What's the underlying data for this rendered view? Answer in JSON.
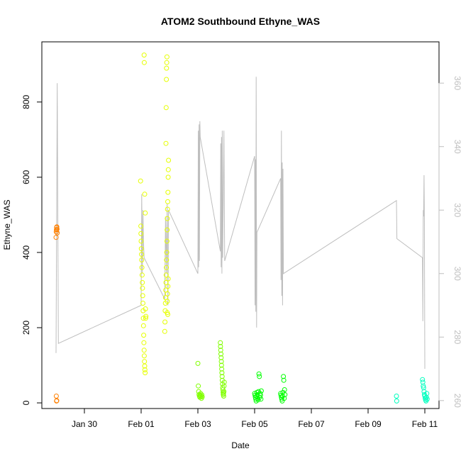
{
  "chart_data": {
    "type": "scatter",
    "title": "ATOM2 Southbound Ethyne_WAS",
    "xlabel": "Date",
    "ylabel": "Ethyne_WAS",
    "ylabel_right": "",
    "x_range": [
      "2017-01-28 12:00",
      "2017-02-11 12:00"
    ],
    "ylim": [
      -15,
      960
    ],
    "ylim_right": [
      257.5,
      373
    ],
    "x_ticks": [
      {
        "date": "2017-01-30",
        "label": "Jan 30"
      },
      {
        "date": "2017-02-01",
        "label": "Feb 01"
      },
      {
        "date": "2017-02-03",
        "label": "Feb 03"
      },
      {
        "date": "2017-02-05",
        "label": "Feb 05"
      },
      {
        "date": "2017-02-07",
        "label": "Feb 07"
      },
      {
        "date": "2017-02-09",
        "label": "Feb 09"
      },
      {
        "date": "2017-02-11",
        "label": "Feb 11"
      }
    ],
    "y_ticks": [
      0,
      200,
      400,
      600,
      800
    ],
    "y_ticks_right": [
      260,
      280,
      300,
      320,
      340,
      360
    ],
    "colors": {
      "line": "#bebebe",
      "points_orange": "#ff8000",
      "points_yellow": "#e6ff00",
      "points_green": "#00ff00",
      "points_cyan": "#00ffbf"
    },
    "series": [
      {
        "color": "#ff8000",
        "points": [
          [
            "2017-01-29 00:00",
            440
          ],
          [
            "2017-01-29 00:10",
            455
          ],
          [
            "2017-01-29 00:20",
            460
          ],
          [
            "2017-01-29 00:30",
            466
          ],
          [
            "2017-01-29 00:40",
            468
          ],
          [
            "2017-01-29 00:50",
            462
          ],
          [
            "2017-01-29 01:00",
            452
          ],
          [
            "2017-01-29 00:15",
            18
          ],
          [
            "2017-01-29 00:25",
            5
          ],
          [
            "2017-01-29 00:35",
            6
          ]
        ]
      },
      {
        "color": "#e6ff00",
        "points": [
          [
            "2017-01-31 23:30",
            590
          ],
          [
            "2017-01-31 23:45",
            470
          ],
          [
            "2017-01-31 23:50",
            450
          ],
          [
            "2017-02-01 00:00",
            430
          ],
          [
            "2017-02-01 00:10",
            410
          ],
          [
            "2017-02-01 00:20",
            395
          ],
          [
            "2017-02-01 00:30",
            380
          ],
          [
            "2017-02-01 00:40",
            360
          ],
          [
            "2017-02-01 00:50",
            340
          ],
          [
            "2017-02-01 01:00",
            320
          ],
          [
            "2017-02-01 01:10",
            305
          ],
          [
            "2017-02-01 01:20",
            285
          ],
          [
            "2017-02-01 01:30",
            265
          ],
          [
            "2017-02-01 01:40",
            245
          ],
          [
            "2017-02-01 01:50",
            225
          ],
          [
            "2017-02-01 02:00",
            205
          ],
          [
            "2017-02-01 02:10",
            180
          ],
          [
            "2017-02-01 02:20",
            160
          ],
          [
            "2017-02-01 02:30",
            140
          ],
          [
            "2017-02-01 02:40",
            125
          ],
          [
            "2017-02-01 02:50",
            110
          ],
          [
            "2017-02-01 03:00",
            98
          ],
          [
            "2017-02-01 03:10",
            88
          ],
          [
            "2017-02-01 03:20",
            80
          ],
          [
            "2017-02-01 03:00",
            555
          ],
          [
            "2017-02-01 03:30",
            505
          ],
          [
            "2017-02-01 03:40",
            250
          ],
          [
            "2017-02-01 03:50",
            225
          ],
          [
            "2017-02-01 04:00",
            230
          ],
          [
            "2017-02-01 02:30",
            925
          ],
          [
            "2017-02-01 02:40",
            905
          ],
          [
            "2017-02-01 20:00",
            190
          ],
          [
            "2017-02-01 20:10",
            215
          ],
          [
            "2017-02-01 20:20",
            245
          ],
          [
            "2017-02-01 20:30",
            265
          ],
          [
            "2017-02-01 20:40",
            280
          ],
          [
            "2017-02-01 20:50",
            300
          ],
          [
            "2017-02-01 21:00",
            320
          ],
          [
            "2017-02-01 21:10",
            340
          ],
          [
            "2017-02-01 21:20",
            360
          ],
          [
            "2017-02-01 21:30",
            380
          ],
          [
            "2017-02-01 21:40",
            400
          ],
          [
            "2017-02-01 21:50",
            430
          ],
          [
            "2017-02-01 22:00",
            460
          ],
          [
            "2017-02-01 22:10",
            490
          ],
          [
            "2017-02-01 22:20",
            515
          ],
          [
            "2017-02-01 22:30",
            535
          ],
          [
            "2017-02-01 22:40",
            560
          ],
          [
            "2017-02-01 22:50",
            600
          ],
          [
            "2017-02-01 23:00",
            620
          ],
          [
            "2017-02-01 23:10",
            645
          ],
          [
            "2017-02-01 21:00",
            690
          ],
          [
            "2017-02-01 21:10",
            785
          ],
          [
            "2017-02-01 21:20",
            860
          ],
          [
            "2017-02-01 21:30",
            890
          ],
          [
            "2017-02-01 21:40",
            905
          ],
          [
            "2017-02-01 21:50",
            920
          ],
          [
            "2017-02-01 22:00",
            240
          ],
          [
            "2017-02-01 22:10",
            270
          ],
          [
            "2017-02-01 22:20",
            290
          ],
          [
            "2017-02-01 22:30",
            235
          ],
          [
            "2017-02-01 22:40",
            310
          ],
          [
            "2017-02-01 22:50",
            330
          ]
        ]
      },
      {
        "color": "#80ff00",
        "points": [
          [
            "2017-02-03 00:00",
            105
          ],
          [
            "2017-02-03 00:20",
            45
          ],
          [
            "2017-02-03 00:40",
            30
          ],
          [
            "2017-02-03 01:00",
            22
          ],
          [
            "2017-02-03 01:20",
            18
          ],
          [
            "2017-02-03 01:40",
            15
          ],
          [
            "2017-02-03 02:00",
            20
          ],
          [
            "2017-02-03 02:20",
            25
          ],
          [
            "2017-02-03 02:40",
            17
          ],
          [
            "2017-02-03 03:00",
            12
          ],
          [
            "2017-02-03 03:20",
            21
          ],
          [
            "2017-02-03 03:40",
            16
          ],
          [
            "2017-02-03 19:00",
            160
          ],
          [
            "2017-02-03 19:10",
            150
          ],
          [
            "2017-02-03 19:20",
            140
          ],
          [
            "2017-02-03 19:30",
            130
          ],
          [
            "2017-02-03 19:40",
            120
          ],
          [
            "2017-02-03 19:50",
            110
          ],
          [
            "2017-02-03 20:00",
            100
          ],
          [
            "2017-02-03 20:10",
            90
          ],
          [
            "2017-02-03 20:20",
            80
          ],
          [
            "2017-02-03 20:30",
            70
          ],
          [
            "2017-02-03 20:40",
            60
          ],
          [
            "2017-02-03 20:50",
            50
          ],
          [
            "2017-02-03 21:00",
            40
          ],
          [
            "2017-02-03 21:10",
            35
          ],
          [
            "2017-02-03 21:20",
            28
          ],
          [
            "2017-02-03 21:30",
            22
          ],
          [
            "2017-02-03 21:40",
            25
          ],
          [
            "2017-02-03 21:50",
            18
          ],
          [
            "2017-02-03 22:00",
            30
          ],
          [
            "2017-02-03 22:10",
            45
          ],
          [
            "2017-02-03 22:20",
            55
          ]
        ]
      },
      {
        "color": "#00ff00",
        "points": [
          [
            "2017-02-05 00:00",
            25
          ],
          [
            "2017-02-05 00:20",
            20
          ],
          [
            "2017-02-05 00:40",
            15
          ],
          [
            "2017-02-05 01:00",
            10
          ],
          [
            "2017-02-05 01:20",
            5
          ],
          [
            "2017-02-05 01:40",
            18
          ],
          [
            "2017-02-05 02:00",
            28
          ],
          [
            "2017-02-05 02:20",
            22
          ],
          [
            "2017-02-05 02:40",
            12
          ],
          [
            "2017-02-05 03:00",
            8
          ],
          [
            "2017-02-05 03:20",
            30
          ],
          [
            "2017-02-05 03:40",
            77
          ],
          [
            "2017-02-05 04:00",
            70
          ],
          [
            "2017-02-05 04:20",
            15
          ],
          [
            "2017-02-05 04:40",
            25
          ],
          [
            "2017-02-05 05:00",
            20
          ],
          [
            "2017-02-05 05:20",
            10
          ],
          [
            "2017-02-05 05:40",
            32
          ],
          [
            "2017-02-05 22:00",
            25
          ],
          [
            "2017-02-05 22:20",
            20
          ],
          [
            "2017-02-05 22:40",
            15
          ],
          [
            "2017-02-05 23:00",
            10
          ],
          [
            "2017-02-05 23:20",
            5
          ],
          [
            "2017-02-05 23:40",
            18
          ],
          [
            "2017-02-06 00:00",
            28
          ],
          [
            "2017-02-06 00:20",
            70
          ],
          [
            "2017-02-06 00:40",
            60
          ],
          [
            "2017-02-06 01:00",
            12
          ],
          [
            "2017-02-06 01:20",
            35
          ],
          [
            "2017-02-06 01:40",
            22
          ]
        ]
      },
      {
        "color": "#00ffbf",
        "points": [
          [
            "2017-02-10 00:00",
            18
          ],
          [
            "2017-02-10 00:10",
            5
          ],
          [
            "2017-02-10 22:00",
            62
          ],
          [
            "2017-02-10 22:20",
            55
          ],
          [
            "2017-02-10 22:40",
            45
          ],
          [
            "2017-02-10 23:00",
            40
          ],
          [
            "2017-02-10 23:20",
            30
          ],
          [
            "2017-02-10 23:40",
            22
          ],
          [
            "2017-02-11 00:00",
            18
          ],
          [
            "2017-02-11 00:20",
            12
          ],
          [
            "2017-02-11 00:40",
            8
          ],
          [
            "2017-02-11 01:00",
            5
          ],
          [
            "2017-02-11 01:20",
            15
          ],
          [
            "2017-02-11 01:40",
            25
          ],
          [
            "2017-02-11 02:00",
            10
          ]
        ]
      }
    ],
    "line_series_right_axis": {
      "color": "#bebebe",
      "points": [
        [
          "2017-01-29 00:00",
          275
        ],
        [
          "2017-01-29 01:00",
          360
        ],
        [
          "2017-01-29 02:00",
          278
        ],
        [
          "2017-02-01 00:00",
          290
        ],
        [
          "2017-02-01 00:30",
          325
        ],
        [
          "2017-02-01 01:00",
          300
        ],
        [
          "2017-02-01 01:30",
          320
        ],
        [
          "2017-02-01 02:00",
          310
        ],
        [
          "2017-02-01 02:30",
          305
        ],
        [
          "2017-02-01 20:00",
          292
        ],
        [
          "2017-02-01 20:40",
          318
        ],
        [
          "2017-02-01 21:20",
          300
        ],
        [
          "2017-02-01 22:00",
          322
        ],
        [
          "2017-02-01 22:40",
          290
        ],
        [
          "2017-02-01 23:10",
          320
        ],
        [
          "2017-02-03 00:00",
          300
        ],
        [
          "2017-02-03 00:20",
          345
        ],
        [
          "2017-02-03 00:40",
          302
        ],
        [
          "2017-02-03 01:00",
          347
        ],
        [
          "2017-02-03 01:20",
          304
        ],
        [
          "2017-02-03 01:40",
          348
        ],
        [
          "2017-02-03 02:00",
          343
        ],
        [
          "2017-02-03 19:00",
          307
        ],
        [
          "2017-02-03 19:20",
          341
        ],
        [
          "2017-02-03 19:40",
          302
        ],
        [
          "2017-02-03 20:00",
          343
        ],
        [
          "2017-02-03 20:20",
          300
        ],
        [
          "2017-02-03 20:40",
          345
        ],
        [
          "2017-02-03 21:00",
          305
        ],
        [
          "2017-02-03 22:00",
          345
        ],
        [
          "2017-02-03 22:40",
          304
        ],
        [
          "2017-02-05 00:00",
          337
        ],
        [
          "2017-02-05 00:20",
          290
        ],
        [
          "2017-02-05 00:40",
          336
        ],
        [
          "2017-02-05 01:00",
          288
        ],
        [
          "2017-02-05 01:20",
          362
        ],
        [
          "2017-02-05 01:40",
          283
        ],
        [
          "2017-02-05 02:00",
          313
        ],
        [
          "2017-02-05 22:00",
          330
        ],
        [
          "2017-02-05 22:20",
          298
        ],
        [
          "2017-02-05 22:40",
          345
        ],
        [
          "2017-02-05 23:00",
          293
        ],
        [
          "2017-02-05 23:20",
          335
        ],
        [
          "2017-02-05 23:40",
          290
        ],
        [
          "2017-02-06 00:00",
          333
        ],
        [
          "2017-02-06 00:20",
          300
        ],
        [
          "2017-02-10 00:00",
          323
        ],
        [
          "2017-02-10 00:20",
          311
        ],
        [
          "2017-02-10 22:00",
          305
        ],
        [
          "2017-02-10 22:20",
          285
        ],
        [
          "2017-02-10 22:40",
          320
        ],
        [
          "2017-02-10 23:00",
          318
        ],
        [
          "2017-02-10 23:20",
          331
        ],
        [
          "2017-02-10 23:40",
          316
        ],
        [
          "2017-02-11 00:00",
          270
        ]
      ]
    }
  }
}
